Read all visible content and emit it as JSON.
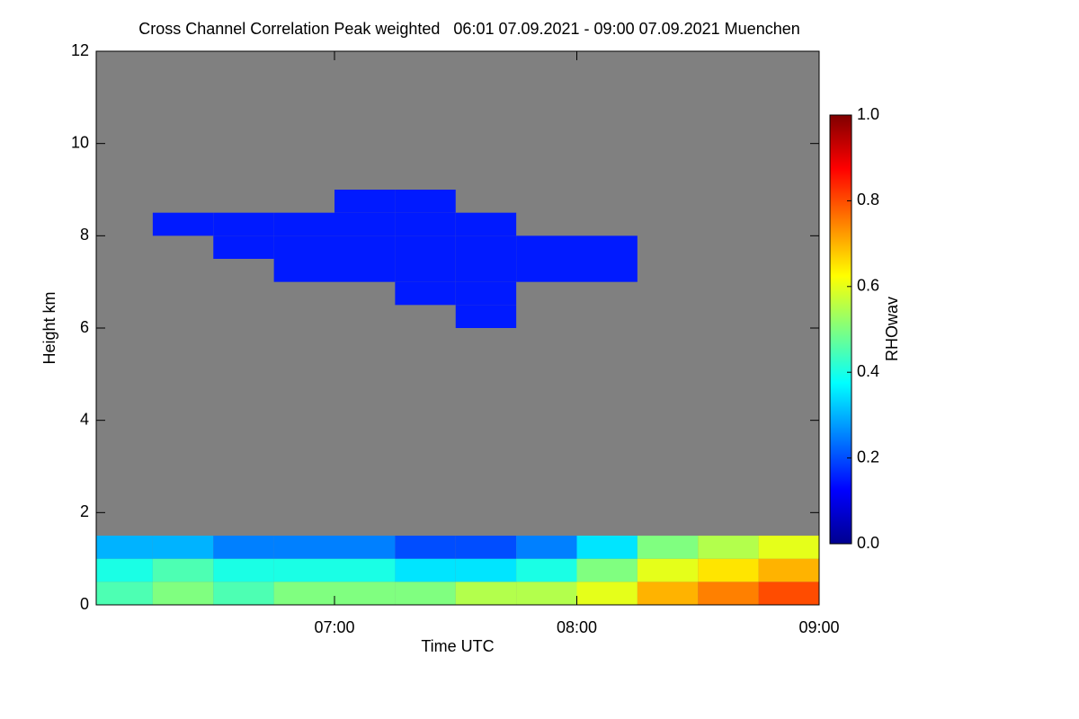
{
  "chart_data": {
    "type": "heatmap",
    "title": "Cross Channel Correlation Peak weighted   06:01 07.09.2021 - 09:00 07.09.2021 Muenchen",
    "x_label": "Time UTC",
    "y_label": "Height km",
    "colorbar_label": "RHOwav",
    "colormap": "jet",
    "xlim": [
      6.0167,
      9.0
    ],
    "xticks": [
      {
        "value": 7,
        "label": "07:00"
      },
      {
        "value": 8,
        "label": "08:00"
      },
      {
        "value": 9,
        "label": "09:00"
      }
    ],
    "ylim": [
      0,
      12
    ],
    "yticks": [
      0,
      2,
      4,
      6,
      8,
      10,
      12
    ],
    "clim": [
      0,
      1
    ],
    "cticks": [
      {
        "value": 0,
        "label": "0.0"
      },
      {
        "value": 0.2,
        "label": "0.2"
      },
      {
        "value": 0.4,
        "label": "0.4"
      },
      {
        "value": 0.6,
        "label": "0.6"
      },
      {
        "value": 0.8,
        "label": "0.8"
      },
      {
        "value": 1,
        "label": "1.0"
      }
    ],
    "x": [
      6.125,
      6.375,
      6.625,
      6.875,
      7.125,
      7.375,
      7.625,
      7.875,
      8.125,
      8.375,
      8.625,
      8.875
    ],
    "y": [
      0.25,
      0.75,
      1.25,
      1.75,
      2.25,
      2.75,
      3.25,
      3.75,
      4.25,
      4.75,
      5.25,
      5.75,
      6.25,
      6.75,
      7.25,
      7.75,
      8.25,
      8.75,
      9.25,
      9.75,
      10.25,
      10.75,
      11.25,
      11.75
    ],
    "values": [
      [
        0.45,
        0.5,
        0.45,
        0.5,
        0.5,
        0.5,
        0.55,
        0.55,
        0.6,
        0.7,
        0.75,
        0.8
      ],
      [
        0.4,
        0.45,
        0.4,
        0.4,
        0.4,
        0.35,
        0.35,
        0.4,
        0.5,
        0.6,
        0.65,
        0.7
      ],
      [
        0.3,
        0.3,
        0.25,
        0.25,
        0.25,
        0.2,
        0.2,
        0.25,
        0.35,
        0.5,
        0.55,
        0.6
      ],
      [
        null,
        null,
        null,
        null,
        null,
        null,
        null,
        null,
        null,
        null,
        null,
        null
      ],
      [
        null,
        null,
        null,
        null,
        null,
        null,
        null,
        null,
        null,
        null,
        null,
        null
      ],
      [
        null,
        null,
        null,
        null,
        null,
        null,
        null,
        null,
        null,
        null,
        null,
        null
      ],
      [
        null,
        null,
        null,
        null,
        null,
        null,
        null,
        null,
        null,
        null,
        null,
        null
      ],
      [
        null,
        null,
        null,
        null,
        null,
        null,
        null,
        null,
        null,
        null,
        null,
        null
      ],
      [
        null,
        null,
        null,
        null,
        null,
        null,
        null,
        null,
        null,
        null,
        null,
        null
      ],
      [
        null,
        null,
        null,
        null,
        null,
        null,
        null,
        null,
        null,
        null,
        null,
        null
      ],
      [
        null,
        null,
        null,
        null,
        null,
        null,
        null,
        null,
        null,
        null,
        null,
        null
      ],
      [
        null,
        null,
        null,
        null,
        null,
        null,
        null,
        null,
        null,
        null,
        null,
        null
      ],
      [
        null,
        null,
        null,
        null,
        null,
        null,
        0.15,
        null,
        null,
        null,
        null,
        null
      ],
      [
        null,
        null,
        null,
        null,
        null,
        0.15,
        0.15,
        null,
        null,
        null,
        null,
        null
      ],
      [
        null,
        null,
        null,
        0.15,
        0.15,
        0.15,
        0.15,
        0.15,
        0.15,
        null,
        null,
        null
      ],
      [
        null,
        null,
        0.15,
        0.15,
        0.15,
        0.15,
        0.15,
        0.15,
        0.15,
        null,
        null,
        null
      ],
      [
        null,
        0.15,
        0.15,
        0.15,
        0.15,
        0.15,
        0.15,
        null,
        null,
        null,
        null,
        null
      ],
      [
        null,
        null,
        null,
        null,
        0.15,
        0.15,
        null,
        null,
        null,
        null,
        null,
        null
      ],
      [
        null,
        null,
        null,
        null,
        null,
        null,
        null,
        null,
        null,
        null,
        null,
        null
      ],
      [
        null,
        null,
        null,
        null,
        null,
        null,
        null,
        null,
        null,
        null,
        null,
        null
      ],
      [
        null,
        null,
        null,
        null,
        null,
        null,
        null,
        null,
        null,
        null,
        null,
        null
      ],
      [
        null,
        null,
        null,
        null,
        null,
        null,
        null,
        null,
        null,
        null,
        null,
        null
      ],
      [
        null,
        null,
        null,
        null,
        null,
        null,
        null,
        null,
        null,
        null,
        null,
        null
      ],
      [
        null,
        null,
        null,
        null,
        null,
        null,
        null,
        null,
        null,
        null,
        null,
        null
      ]
    ]
  }
}
